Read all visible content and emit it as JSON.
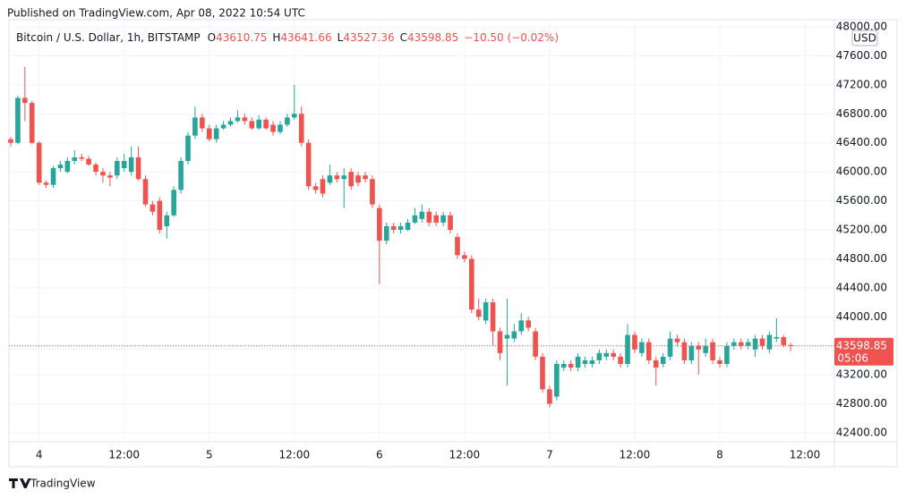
{
  "published": "Published on TradingView.com, Apr 08, 2022 10:54 UTC",
  "brand": "TradingView",
  "chart_data": {
    "type": "candlestick",
    "symbol": "Bitcoin / U.S. Dollar, 1h, BITSTAMP",
    "ohlc_letters": [
      "O",
      "H",
      "L",
      "C"
    ],
    "change_label": "−10.50 (−0.02%)",
    "currency": "USD",
    "countdown": "05:06",
    "up_color": "#26a69a",
    "down_color": "#ef5350",
    "grid": true,
    "categories": [
      null,
      null,
      null,
      null,
      "4",
      null,
      null,
      null,
      null,
      null,
      null,
      null,
      null,
      null,
      null,
      null,
      "12:00",
      null,
      null,
      null,
      null,
      null,
      null,
      null,
      null,
      null,
      null,
      null,
      "5",
      null,
      null,
      null,
      null,
      null,
      null,
      null,
      null,
      null,
      null,
      null,
      "12:00",
      null,
      null,
      null,
      null,
      null,
      null,
      null,
      null,
      null,
      null,
      null,
      "6",
      null,
      null,
      null,
      null,
      null,
      null,
      null,
      null,
      null,
      null,
      null,
      "12:00",
      null,
      null,
      null,
      null,
      null,
      null,
      null,
      null,
      null,
      null,
      null,
      "7",
      null,
      null,
      null,
      null,
      null,
      null,
      null,
      null,
      null,
      null,
      null,
      "12:00",
      null,
      null,
      null,
      null,
      null,
      null,
      null,
      null,
      null,
      null,
      null,
      "8",
      null,
      null,
      null,
      null,
      null,
      null,
      null,
      null,
      null,
      null,
      null,
      "12:00"
    ],
    "open": [
      46450,
      46400,
      47020,
      46950,
      46400,
      45850,
      45820,
      46050,
      46000,
      46150,
      46200,
      46180,
      46100,
      46000,
      45950,
      45950,
      46050,
      46000,
      46200,
      45900,
      45550,
      45600,
      45250,
      45400,
      45750,
      46150,
      46500,
      46750,
      46600,
      46450,
      46600,
      46650,
      46700,
      46750,
      46700,
      46600,
      46720,
      46650,
      46550,
      46650,
      46750,
      46800,
      46400,
      45800,
      45900,
      45850,
      45950,
      45900,
      46000,
      45950,
      45950,
      45900,
      45500,
      45050,
      45250,
      45200,
      45200,
      45300,
      45350,
      45450,
      45400,
      45300,
      45400,
      45100,
      44850,
      44800,
      44100,
      43950,
      44200,
      43800,
      43700,
      43700,
      43800,
      43950,
      43800,
      43450,
      43000,
      42900,
      43300,
      43350,
      43300,
      43350,
      43350,
      43400,
      43450,
      43500,
      43450,
      43350,
      43750,
      43500,
      43650,
      43400,
      43350,
      43450,
      43700,
      43650,
      43400,
      43600,
      43500,
      43650,
      43400,
      43350,
      43600,
      43650,
      43600,
      43550,
      43700,
      43550,
      43700,
      43720,
      43610.75,
      null,
      null
    ],
    "high": [
      46480,
      47050,
      47450,
      46980,
      46420,
      45880,
      46080,
      46150,
      46200,
      46300,
      46250,
      46220,
      46130,
      46050,
      46000,
      46200,
      46250,
      46350,
      46350,
      45950,
      45600,
      45650,
      45450,
      45800,
      46200,
      46550,
      46900,
      46800,
      46650,
      46650,
      46700,
      46750,
      46850,
      46800,
      46750,
      46780,
      46750,
      46700,
      46700,
      46800,
      47200,
      46900,
      46450,
      45850,
      45950,
      46100,
      46000,
      46050,
      46050,
      46000,
      46000,
      45950,
      45550,
      45300,
      45300,
      45300,
      45350,
      45500,
      45550,
      45500,
      45450,
      45450,
      45450,
      45150,
      44900,
      44850,
      44250,
      44250,
      44250,
      43850,
      44250,
      43900,
      44050,
      44000,
      43850,
      43500,
      43050,
      43400,
      43400,
      43400,
      43500,
      43450,
      43450,
      43550,
      43550,
      43550,
      43500,
      43900,
      43800,
      43700,
      43700,
      43450,
      43500,
      43800,
      43750,
      43700,
      43650,
      43650,
      43700,
      43700,
      43450,
      43650,
      43700,
      43700,
      43700,
      43750,
      43750,
      43800,
      43980,
      43750,
      43641.66,
      null,
      null
    ],
    "low": [
      46350,
      46380,
      46700,
      46380,
      45820,
      45780,
      45780,
      46000,
      45980,
      46100,
      46150,
      46080,
      45950,
      45850,
      45800,
      45900,
      46000,
      45950,
      45880,
      45520,
      45400,
      45150,
      45080,
      45380,
      45700,
      46100,
      46450,
      46550,
      46420,
      46400,
      46580,
      46620,
      46680,
      46650,
      46580,
      46580,
      46580,
      46500,
      46520,
      46620,
      46720,
      46350,
      45750,
      45700,
      45650,
      45820,
      45850,
      45500,
      45750,
      45800,
      45850,
      45500,
      44450,
      45000,
      45150,
      45150,
      45180,
      45280,
      45300,
      45250,
      45250,
      45250,
      45150,
      44800,
      44750,
      44050,
      43950,
      43900,
      43600,
      43400,
      43050,
      43650,
      43750,
      43800,
      43400,
      42950,
      42750,
      42850,
      43250,
      43250,
      43250,
      43300,
      43300,
      43350,
      43400,
      43400,
      43300,
      43300,
      43500,
      43450,
      43350,
      43050,
      43300,
      43400,
      43600,
      43350,
      43350,
      43200,
      43450,
      43350,
      43300,
      43300,
      43550,
      43550,
      43550,
      43450,
      43550,
      43500,
      43650,
      43580,
      43527.36,
      null,
      null
    ],
    "close": [
      46400,
      47020,
      46950,
      46400,
      45850,
      45820,
      46050,
      46100,
      46150,
      46200,
      46180,
      46100,
      46000,
      45950,
      45920,
      46150,
      46150,
      46200,
      45900,
      45550,
      45450,
      45200,
      45400,
      45750,
      46150,
      46500,
      46750,
      46600,
      46450,
      46600,
      46650,
      46700,
      46750,
      46700,
      46600,
      46720,
      46600,
      46550,
      46650,
      46750,
      46800,
      46400,
      45800,
      45750,
      45700,
      45950,
      45900,
      45950,
      45800,
      45850,
      45900,
      45550,
      45050,
      45250,
      45200,
      45250,
      45300,
      45400,
      45450,
      45300,
      45300,
      45400,
      45200,
      44850,
      44800,
      44100,
      44000,
      44200,
      43800,
      43500,
      43750,
      43800,
      43950,
      43850,
      43450,
      43000,
      42800,
      43350,
      43350,
      43300,
      43450,
      43400,
      43400,
      43500,
      43500,
      43450,
      43350,
      43750,
      43550,
      43650,
      43400,
      43300,
      43450,
      43700,
      43650,
      43400,
      43600,
      43550,
      43600,
      43400,
      43350,
      43600,
      43650,
      43600,
      43650,
      43700,
      43600,
      43750,
      43720,
      43610,
      43598.85,
      null,
      null
    ],
    "ylim": [
      42250,
      48150
    ],
    "yticks": [
      {
        "value": 48000,
        "label": "48000.00"
      },
      {
        "value": 47600,
        "label": "47600.00"
      },
      {
        "value": 47200,
        "label": "47200.00"
      },
      {
        "value": 46800,
        "label": "46800.00"
      },
      {
        "value": 46400,
        "label": "46400.00"
      },
      {
        "value": 46000,
        "label": "46000.00"
      },
      {
        "value": 45600,
        "label": "45600.00"
      },
      {
        "value": 45200,
        "label": "45200.00"
      },
      {
        "value": 44800,
        "label": "44800.00"
      },
      {
        "value": 44400,
        "label": "44400.00"
      },
      {
        "value": 44000,
        "label": "44000.00"
      },
      {
        "value": 43600,
        "label": "43600.00"
      },
      {
        "value": 43200,
        "label": "43200.00"
      },
      {
        "value": 42800,
        "label": "42800.00"
      },
      {
        "value": 42400,
        "label": "42400.00"
      }
    ]
  }
}
